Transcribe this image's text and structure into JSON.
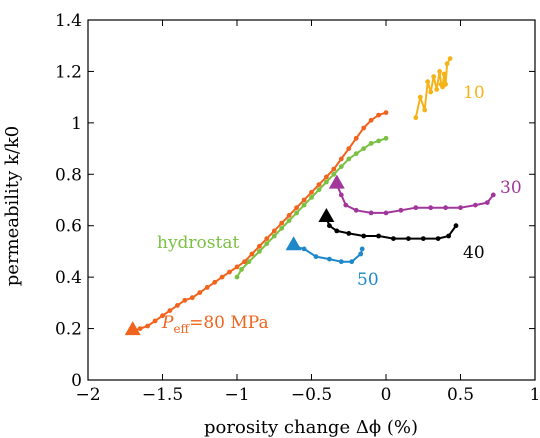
{
  "chart_data": {
    "type": "line",
    "xlabel": "porosity change Δϕ (%)",
    "ylabel": "permeability k/k0",
    "xlim": [
      -2,
      1
    ],
    "ylim": [
      0,
      1.4
    ],
    "xticks": [
      "−2",
      "−1.5",
      "−1",
      "−0.5",
      "0",
      "0.5",
      "1"
    ],
    "yticks": [
      "0",
      "0.2",
      "0.4",
      "0.6",
      "0.8",
      "1",
      "1.2",
      "1.4"
    ],
    "grid": false,
    "series": [
      {
        "name": "10",
        "color": "#f5b31a",
        "start_marker": false,
        "points": [
          [
            0.2,
            1.02
          ],
          [
            0.23,
            1.1
          ],
          [
            0.26,
            1.05
          ],
          [
            0.28,
            1.16
          ],
          [
            0.3,
            1.12
          ],
          [
            0.32,
            1.18
          ],
          [
            0.34,
            1.13
          ],
          [
            0.36,
            1.2
          ],
          [
            0.37,
            1.15
          ],
          [
            0.38,
            1.14
          ],
          [
            0.39,
            1.19
          ],
          [
            0.4,
            1.15
          ],
          [
            0.41,
            1.23
          ],
          [
            0.43,
            1.25
          ]
        ]
      },
      {
        "name": "30",
        "color": "#a2379b",
        "start_marker": true,
        "points": [
          [
            -0.33,
            0.76
          ],
          [
            -0.3,
            0.72
          ],
          [
            -0.27,
            0.68
          ],
          [
            -0.2,
            0.66
          ],
          [
            -0.1,
            0.65
          ],
          [
            0.0,
            0.65
          ],
          [
            0.1,
            0.66
          ],
          [
            0.2,
            0.67
          ],
          [
            0.3,
            0.67
          ],
          [
            0.4,
            0.67
          ],
          [
            0.5,
            0.67
          ],
          [
            0.6,
            0.68
          ],
          [
            0.68,
            0.69
          ],
          [
            0.72,
            0.72
          ]
        ]
      },
      {
        "name": "40",
        "color": "#000000",
        "start_marker": true,
        "points": [
          [
            -0.4,
            0.63
          ],
          [
            -0.38,
            0.6
          ],
          [
            -0.33,
            0.58
          ],
          [
            -0.25,
            0.57
          ],
          [
            -0.15,
            0.56
          ],
          [
            -0.05,
            0.56
          ],
          [
            0.05,
            0.55
          ],
          [
            0.15,
            0.55
          ],
          [
            0.25,
            0.55
          ],
          [
            0.35,
            0.55
          ],
          [
            0.42,
            0.56
          ],
          [
            0.47,
            0.6
          ]
        ]
      },
      {
        "name": "50",
        "color": "#1e88c8",
        "start_marker": true,
        "points": [
          [
            -0.62,
            0.52
          ],
          [
            -0.55,
            0.51
          ],
          [
            -0.47,
            0.48
          ],
          [
            -0.38,
            0.47
          ],
          [
            -0.3,
            0.46
          ],
          [
            -0.23,
            0.46
          ],
          [
            -0.17,
            0.49
          ],
          [
            -0.16,
            0.51
          ]
        ]
      },
      {
        "name": "hydrostat",
        "color": "#7ac143",
        "start_marker": false,
        "points": [
          [
            -1.0,
            0.4
          ],
          [
            -0.97,
            0.43
          ],
          [
            -0.92,
            0.46
          ],
          [
            -0.85,
            0.5
          ],
          [
            -0.8,
            0.53
          ],
          [
            -0.75,
            0.56
          ],
          [
            -0.7,
            0.59
          ],
          [
            -0.65,
            0.62
          ],
          [
            -0.6,
            0.65
          ],
          [
            -0.55,
            0.68
          ],
          [
            -0.5,
            0.71
          ],
          [
            -0.45,
            0.74
          ],
          [
            -0.4,
            0.77
          ],
          [
            -0.35,
            0.8
          ],
          [
            -0.3,
            0.83
          ],
          [
            -0.25,
            0.86
          ],
          [
            -0.2,
            0.88
          ],
          [
            -0.15,
            0.9
          ],
          [
            -0.1,
            0.92
          ],
          [
            -0.05,
            0.93
          ],
          [
            0.0,
            0.94
          ]
        ]
      },
      {
        "name": "Peff=80 MPa",
        "color": "#f0641e",
        "start_marker": true,
        "points": [
          [
            -1.7,
            0.19
          ],
          [
            -1.65,
            0.2
          ],
          [
            -1.6,
            0.21
          ],
          [
            -1.55,
            0.23
          ],
          [
            -1.5,
            0.25
          ],
          [
            -1.45,
            0.27
          ],
          [
            -1.4,
            0.29
          ],
          [
            -1.35,
            0.31
          ],
          [
            -1.3,
            0.32
          ],
          [
            -1.25,
            0.34
          ],
          [
            -1.2,
            0.36
          ],
          [
            -1.15,
            0.38
          ],
          [
            -1.1,
            0.4
          ],
          [
            -1.05,
            0.42
          ],
          [
            -1.0,
            0.44
          ],
          [
            -0.95,
            0.46
          ],
          [
            -0.9,
            0.49
          ],
          [
            -0.85,
            0.52
          ],
          [
            -0.8,
            0.55
          ],
          [
            -0.75,
            0.58
          ],
          [
            -0.7,
            0.61
          ],
          [
            -0.65,
            0.64
          ],
          [
            -0.6,
            0.67
          ],
          [
            -0.55,
            0.7
          ],
          [
            -0.5,
            0.73
          ],
          [
            -0.45,
            0.76
          ],
          [
            -0.4,
            0.79
          ],
          [
            -0.35,
            0.82
          ],
          [
            -0.3,
            0.86
          ],
          [
            -0.25,
            0.9
          ],
          [
            -0.2,
            0.94
          ],
          [
            -0.15,
            0.98
          ],
          [
            -0.1,
            1.01
          ],
          [
            -0.05,
            1.03
          ],
          [
            0.0,
            1.04
          ]
        ]
      }
    ],
    "labels": {
      "s10": "10",
      "s30": "30",
      "s40": "40",
      "s50": "50",
      "hydrostat": "hydrostat",
      "peff_p": "P",
      "peff_sub": "eff",
      "peff_rest": "=80 MPa"
    }
  }
}
